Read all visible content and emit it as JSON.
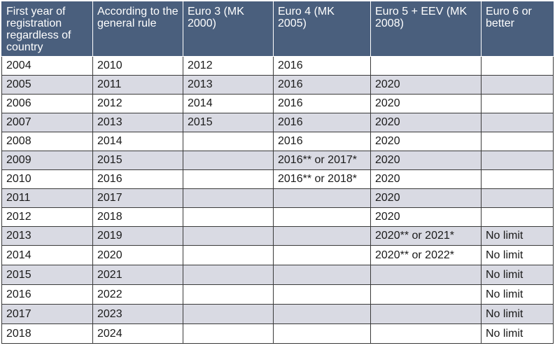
{
  "table": {
    "headers": [
      "First year of registration regardless of country",
      "According to the general rule",
      "Euro 3 (MK 2000)",
      "Euro 4 (MK 2005)",
      "Euro 5 + EEV (MK 2008)",
      "Euro 6 or better"
    ],
    "rows": [
      [
        "2004",
        "2010",
        "2012",
        "2016",
        "",
        ""
      ],
      [
        "2005",
        "2011",
        "2013",
        "2016",
        "2020",
        ""
      ],
      [
        "2006",
        "2012",
        "2014",
        "2016",
        "2020",
        ""
      ],
      [
        "2007",
        "2013",
        "2015",
        "2016",
        "2020",
        ""
      ],
      [
        "2008",
        "2014",
        "",
        "2016",
        "2020",
        ""
      ],
      [
        "2009",
        "2015",
        "",
        "2016** or 2017*",
        "2020",
        ""
      ],
      [
        "2010",
        "2016",
        "",
        "2016** or 2018*",
        "2020",
        ""
      ],
      [
        "2011",
        "2017",
        "",
        "",
        "2020",
        ""
      ],
      [
        "2012",
        "2018",
        "",
        "",
        "2020",
        ""
      ],
      [
        "2013",
        "2019",
        "",
        "",
        "2020** or 2021*",
        "No limit"
      ],
      [
        "2014",
        "2020",
        "",
        "",
        "2020** or 2022*",
        "No limit"
      ],
      [
        "2015",
        "2021",
        "",
        "",
        "",
        "No limit"
      ],
      [
        "2016",
        "2022",
        "",
        "",
        "",
        "No limit"
      ],
      [
        "2017",
        "2023",
        "",
        "",
        "",
        "No limit"
      ],
      [
        "2018",
        "2024",
        "",
        "",
        "",
        "No limit"
      ]
    ]
  },
  "colors": {
    "header_bg": "#4a5f7d",
    "alt_row_bg": "#d9dae3",
    "border": "#3a3a3a"
  }
}
